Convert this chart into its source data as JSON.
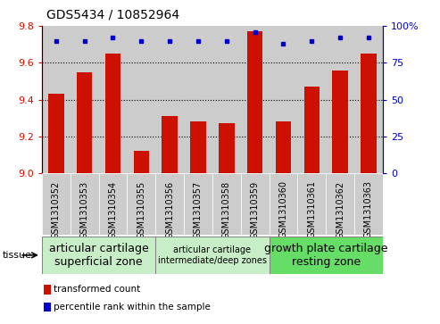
{
  "title": "GDS5434 / 10852964",
  "samples": [
    "GSM1310352",
    "GSM1310353",
    "GSM1310354",
    "GSM1310355",
    "GSM1310356",
    "GSM1310357",
    "GSM1310358",
    "GSM1310359",
    "GSM1310360",
    "GSM1310361",
    "GSM1310362",
    "GSM1310363"
  ],
  "transformed_count": [
    9.43,
    9.55,
    9.65,
    9.12,
    9.31,
    9.28,
    9.27,
    9.77,
    9.28,
    9.47,
    9.56,
    9.65
  ],
  "percentile_rank": [
    90,
    90,
    92,
    90,
    90,
    90,
    90,
    96,
    88,
    90,
    92,
    92
  ],
  "ylim_left": [
    9.0,
    9.8
  ],
  "ylim_right": [
    0,
    100
  ],
  "yticks_left": [
    9.0,
    9.2,
    9.4,
    9.6,
    9.8
  ],
  "yticks_right": [
    0,
    25,
    50,
    75,
    100
  ],
  "bar_color": "#cc1100",
  "dot_color": "#0000cc",
  "col_bg_color": "#cccccc",
  "tissue_groups": [
    {
      "label": "articular cartilage\nsuperficial zone",
      "start": 0,
      "end": 4,
      "color": "#c8eec8",
      "fontsize": 9
    },
    {
      "label": "articular cartilage\nintermediate/deep zones",
      "start": 4,
      "end": 8,
      "color": "#c8eec8",
      "fontsize": 7
    },
    {
      "label": "growth plate cartilage\nresting zone",
      "start": 8,
      "end": 12,
      "color": "#66dd66",
      "fontsize": 9
    }
  ],
  "tissue_label": "tissue",
  "legend_items": [
    {
      "label": "transformed count",
      "color": "#cc1100"
    },
    {
      "label": "percentile rank within the sample",
      "color": "#0000cc"
    }
  ],
  "grid_color": "black",
  "title_fontsize": 10,
  "tick_fontsize": 7,
  "bar_width": 0.55
}
